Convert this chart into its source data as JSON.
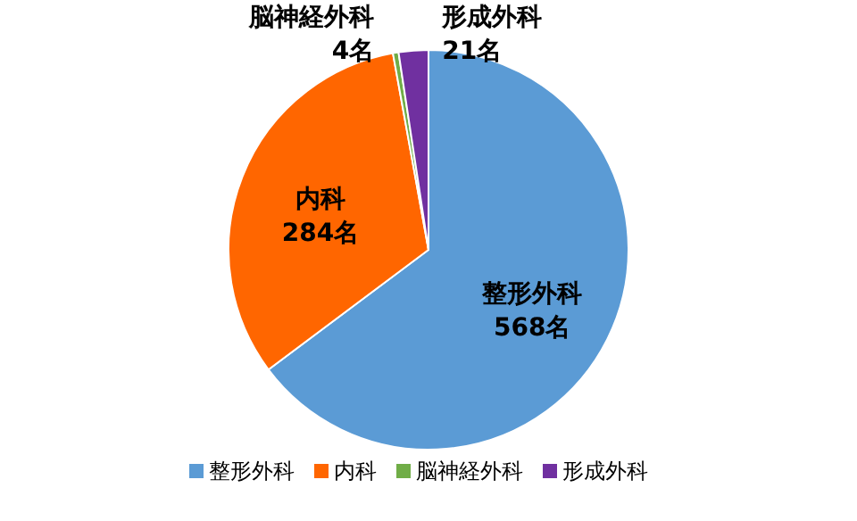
{
  "chart_data": {
    "type": "pie",
    "categories": [
      "整形外科",
      "内科",
      "脳神経外科",
      "形成外科"
    ],
    "values": [
      568,
      284,
      4,
      21
    ],
    "value_labels": [
      "568名",
      "284名",
      "4名",
      "21名"
    ],
    "colors": [
      "#5b9bd5",
      "#ff6600",
      "#70ad47",
      "#7030a0"
    ],
    "legend": "bottom"
  }
}
